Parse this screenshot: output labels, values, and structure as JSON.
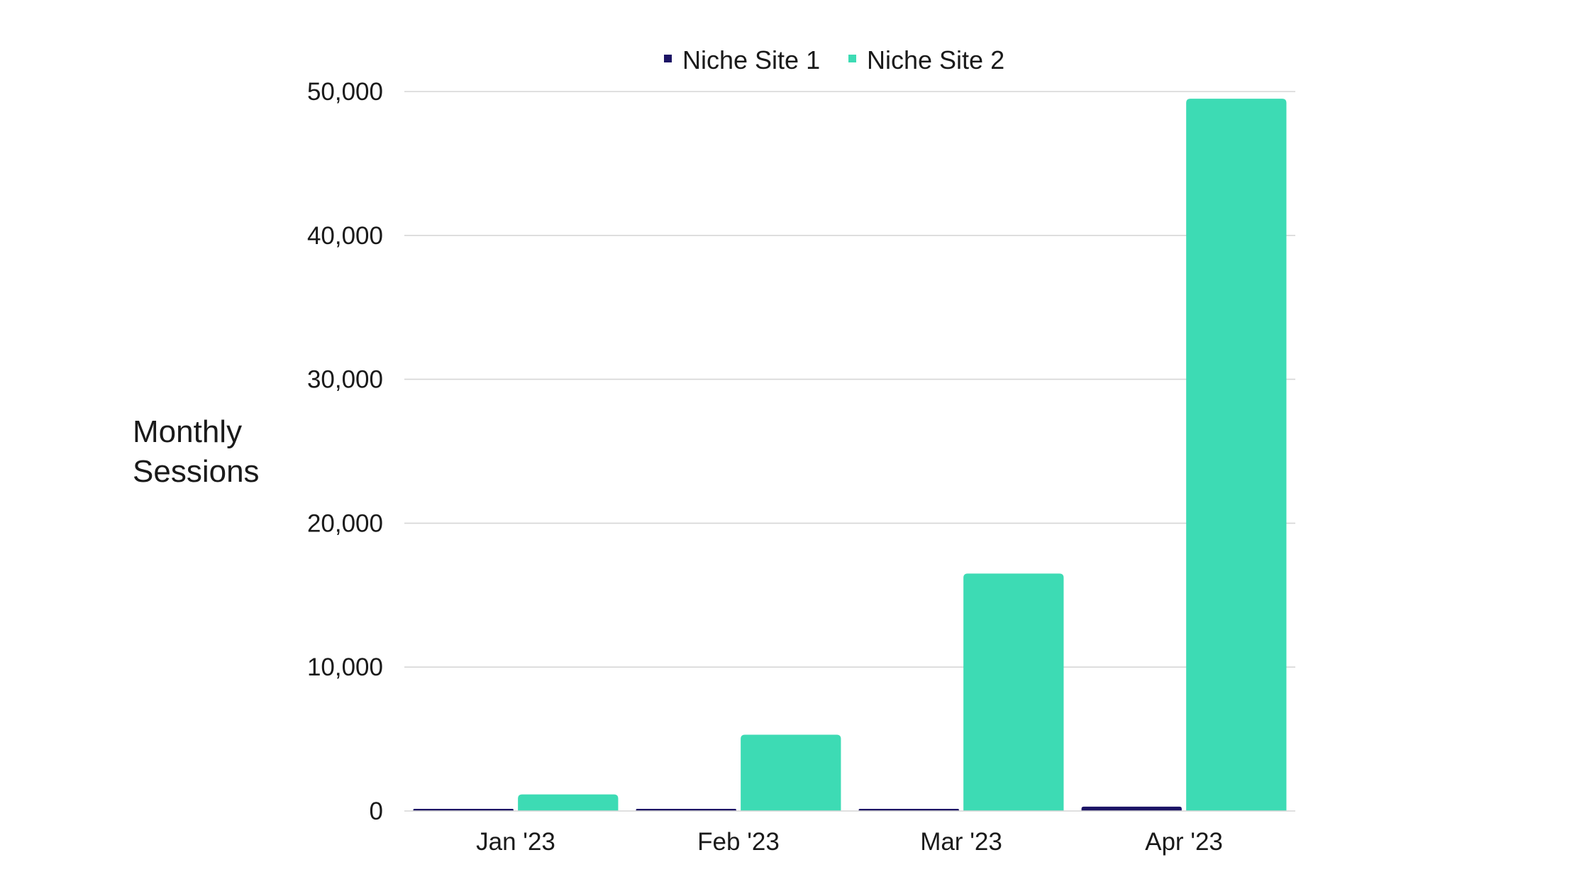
{
  "chart_data": {
    "type": "bar",
    "title": "",
    "xlabel": "",
    "ylabel": "Monthly Sessions",
    "ylabel_lines": [
      "Monthly",
      "Sessions"
    ],
    "categories": [
      "Jan '23",
      "Feb '23",
      "Mar '23",
      "Apr '23"
    ],
    "series": [
      {
        "name": "Niche Site 1",
        "values": [
          80,
          90,
          100,
          300
        ],
        "color": "#1c1465"
      },
      {
        "name": "Niche Site 2",
        "values": [
          1150,
          5300,
          16500,
          49500
        ],
        "color": "#3ddbb4"
      }
    ],
    "ylim": [
      0,
      50000
    ],
    "yticks": [
      0,
      10000,
      20000,
      30000,
      40000,
      50000
    ],
    "ytick_labels": [
      "0",
      "10,000",
      "20,000",
      "30,000",
      "40,000",
      "50,000"
    ],
    "grid": true,
    "legend_position": "top-center"
  }
}
